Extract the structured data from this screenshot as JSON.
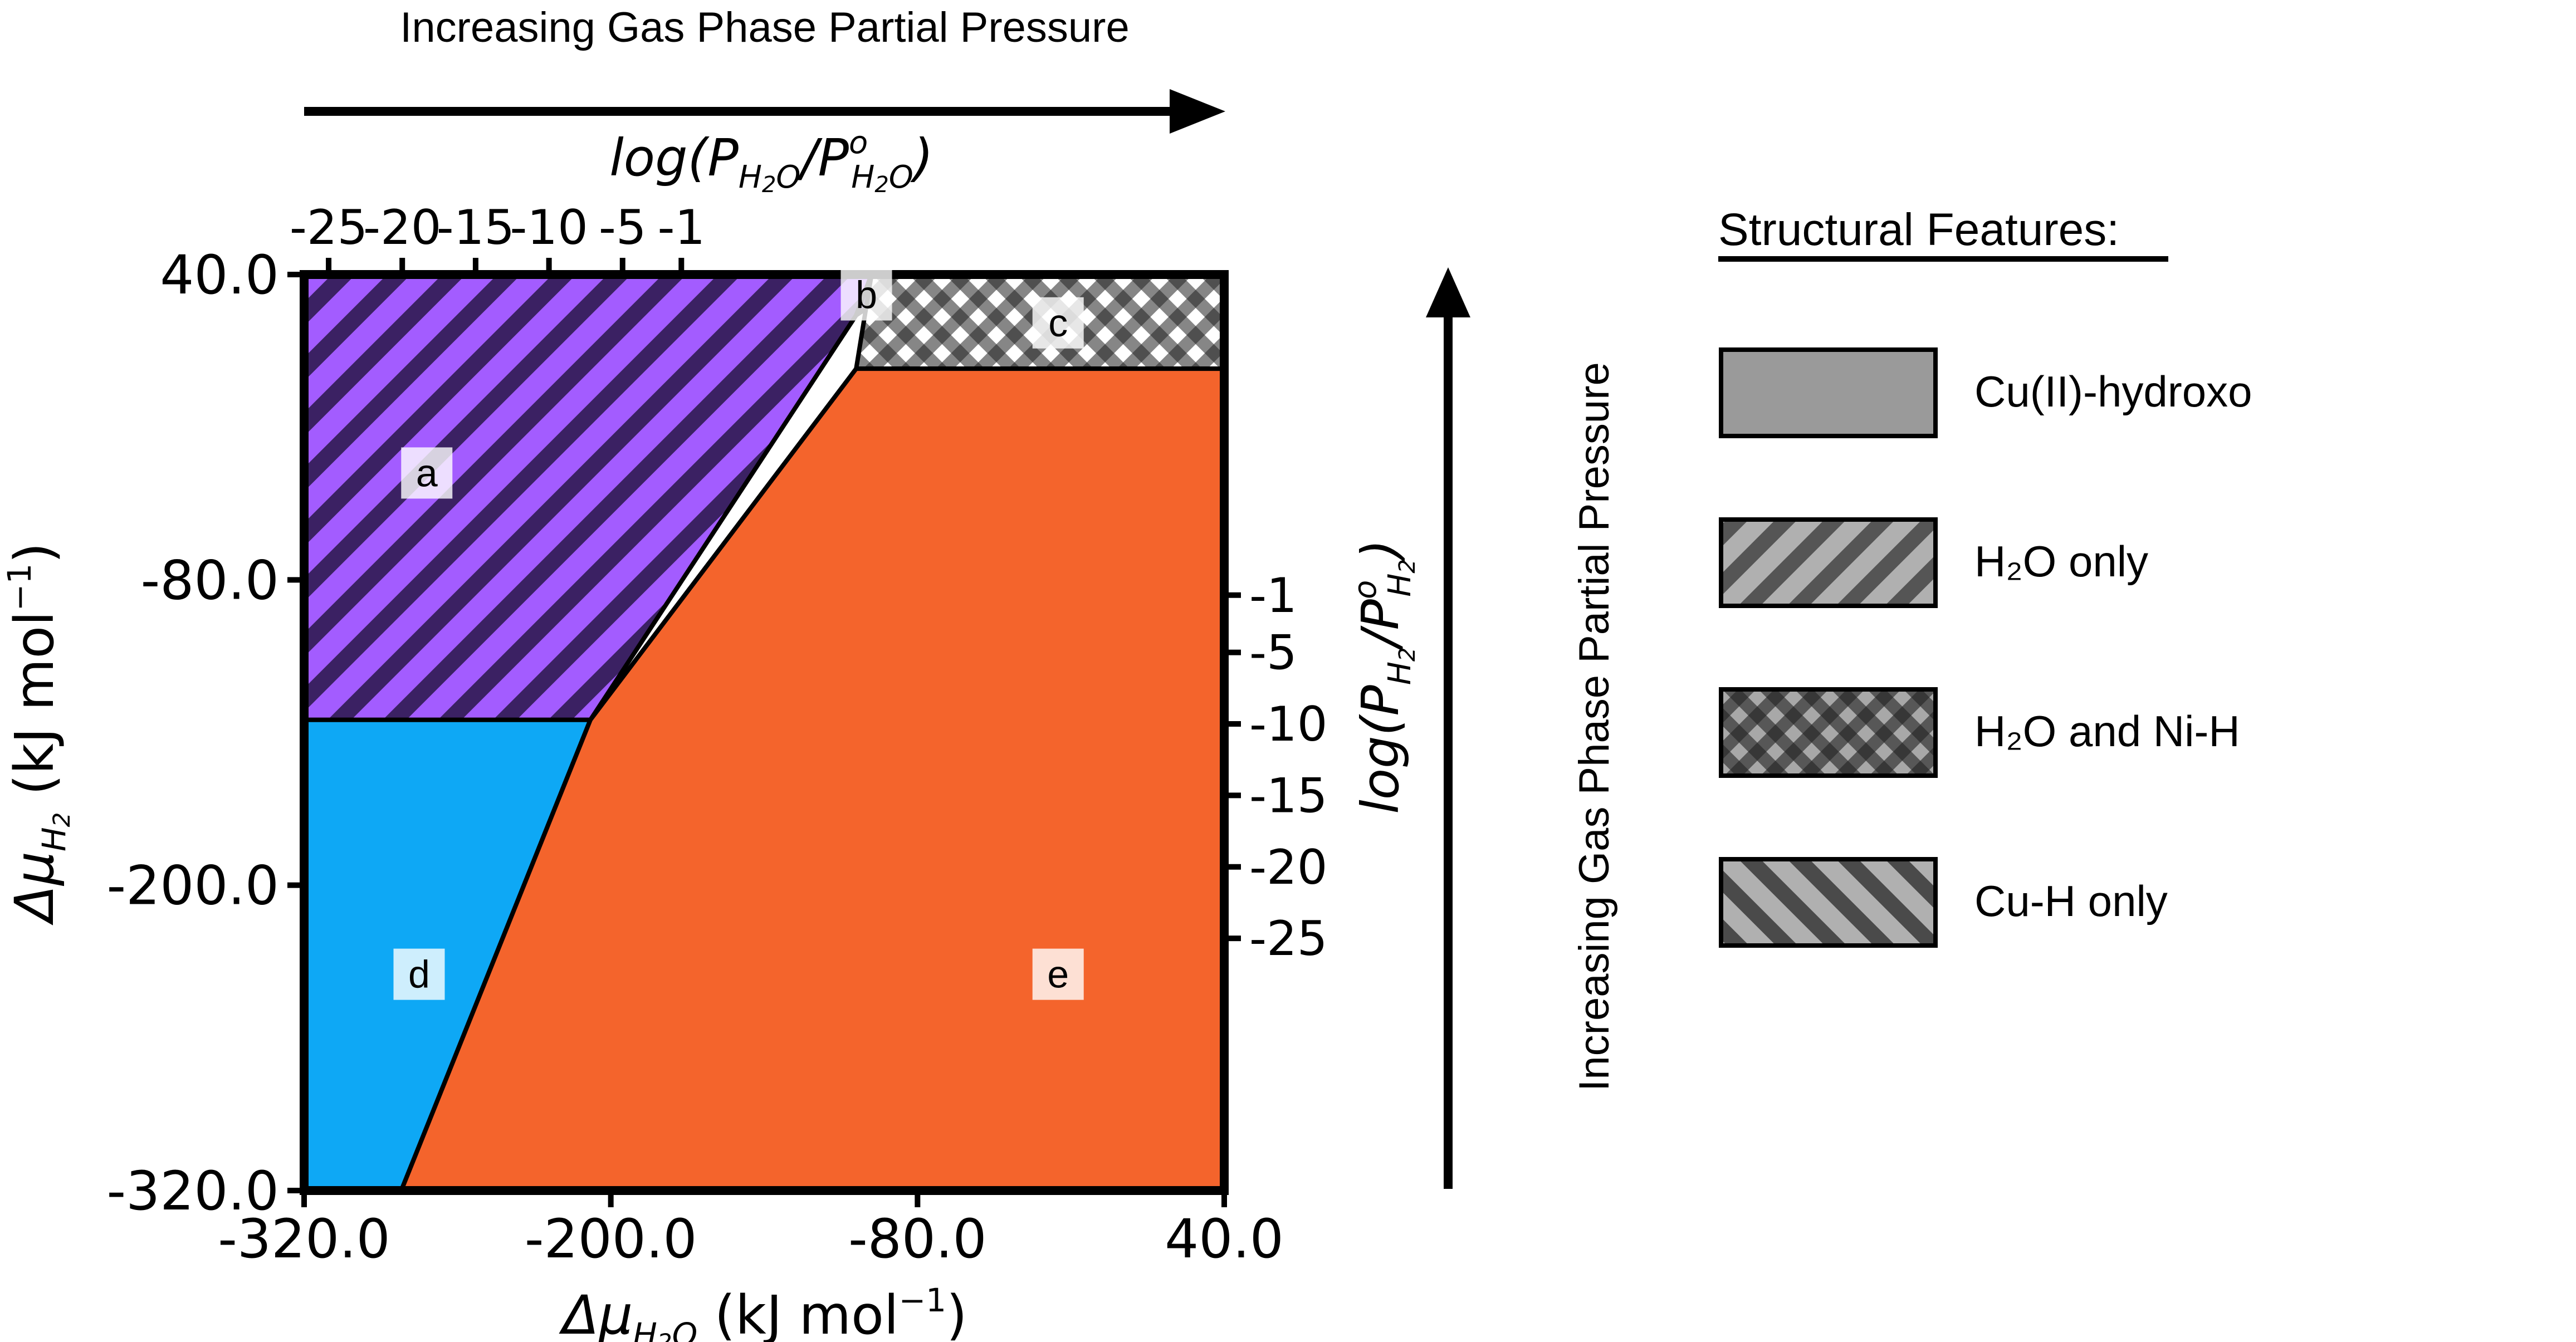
{
  "chart_data": {
    "type": "phase-diagram",
    "top_arrow_label": "Increasing Gas Phase Partial Pressure",
    "right_arrow_label": "Increasing Gas Phase Partial Pressure",
    "top_axis": {
      "label_main": "log(P",
      "label_sub1": "H",
      "label_sub1b": "2",
      "label_sub1c": "O",
      "label_mid": "/P",
      "label_sup": "o",
      "label_sub2": "H",
      "label_sub2b": "2",
      "label_sub2c": "O",
      "label_end": ")",
      "ticks": [
        {
          "label": "-25",
          "x": -310.4
        },
        {
          "label": "-20",
          "x": -281.6
        },
        {
          "label": "-15",
          "x": -252.9
        },
        {
          "label": "-10",
          "x": -224.2
        },
        {
          "label": "-5",
          "x": -195.4
        },
        {
          "label": "-1",
          "x": -172.4
        }
      ]
    },
    "right_axis": {
      "label_main": "log(P",
      "label_sub1": "H",
      "label_sub1b": "2",
      "label_mid": "/P",
      "label_sup": "o",
      "label_sub2": "H",
      "label_sub2b": "2",
      "label_end": ")",
      "ticks": [
        {
          "label": "-1",
          "y": -86
        },
        {
          "label": "-5",
          "y": -108.5
        },
        {
          "label": "-10",
          "y": -136.6
        },
        {
          "label": "-15",
          "y": -164.7
        },
        {
          "label": "-20",
          "y": -192.8
        },
        {
          "label": "-25",
          "y": -220.9
        }
      ]
    },
    "x_axis": {
      "label_main": "Δμ",
      "label_sub": "H",
      "label_sub2": "2",
      "label_sub3": "O",
      "label_units": " (kJ mol",
      "label_sup": "−1",
      "label_end": ")",
      "range": [
        -320,
        40
      ],
      "ticks": [
        {
          "label": "-320.0",
          "v": -320
        },
        {
          "label": "-200.0",
          "v": -200
        },
        {
          "label": "-80.0",
          "v": -80
        },
        {
          "label": "40.0",
          "v": 40
        }
      ]
    },
    "y_axis": {
      "label_main": "Δμ",
      "label_sub": "H",
      "label_sub2": "2",
      "label_units": " (kJ mol",
      "label_sup": "−1",
      "label_end": ")",
      "range": [
        -320,
        40
      ],
      "ticks": [
        {
          "label": "-320.0",
          "v": -320
        },
        {
          "label": "-200.0",
          "v": -200
        },
        {
          "label": "-80.0",
          "v": -80
        },
        {
          "label": "40.0",
          "v": 40
        }
      ]
    },
    "regions": [
      {
        "id": "a",
        "label": "a",
        "color": "#9b4dff",
        "pattern": "diagonal",
        "polygon": [
          [
            -320,
            40
          ],
          [
            -98,
            40
          ],
          [
            -104,
            24
          ],
          [
            -208,
            -135
          ],
          [
            -320,
            -135
          ]
        ],
        "label_at": [
          -272,
          -38
        ]
      },
      {
        "id": "b",
        "label": "b",
        "color": "#9b4dff",
        "pattern": "diagonal",
        "polygon": [
          [
            -98,
            40
          ],
          [
            -80,
            40
          ],
          [
            -104,
            24
          ]
        ],
        "label_at": [
          -100,
          32
        ]
      },
      {
        "id": "c",
        "label": "c",
        "color": "#ffffff",
        "pattern": "checker",
        "polygon": [
          [
            -98,
            40
          ],
          [
            40,
            40
          ],
          [
            40,
            3
          ],
          [
            -104,
            3
          ]
        ],
        "label_at": [
          -25,
          21
        ]
      },
      {
        "id": "d",
        "label": "d",
        "color": "#0ea8f5",
        "pattern": "solid",
        "polygon": [
          [
            -320,
            -135
          ],
          [
            -208,
            -135
          ],
          [
            -282,
            -320
          ],
          [
            -320,
            -320
          ]
        ],
        "label_at": [
          -275,
          -235
        ]
      },
      {
        "id": "e",
        "label": "e",
        "color": "#f4642c",
        "pattern": "solid",
        "polygon": [
          [
            -282,
            -320
          ],
          [
            -208,
            -135
          ],
          [
            -104,
            3
          ],
          [
            40,
            3
          ],
          [
            40,
            -320
          ]
        ],
        "label_at": [
          -25,
          -235
        ]
      }
    ],
    "legend": {
      "title": "Structural Features:",
      "items": [
        {
          "label": "Cu(II)-hydroxo",
          "pattern": "solid"
        },
        {
          "label": "H₂O only",
          "pattern": "diagonal"
        },
        {
          "label": "H₂O and Ni-H",
          "pattern": "checker"
        },
        {
          "label": "Cu-H only",
          "pattern": "diagonal-wide"
        }
      ]
    }
  }
}
